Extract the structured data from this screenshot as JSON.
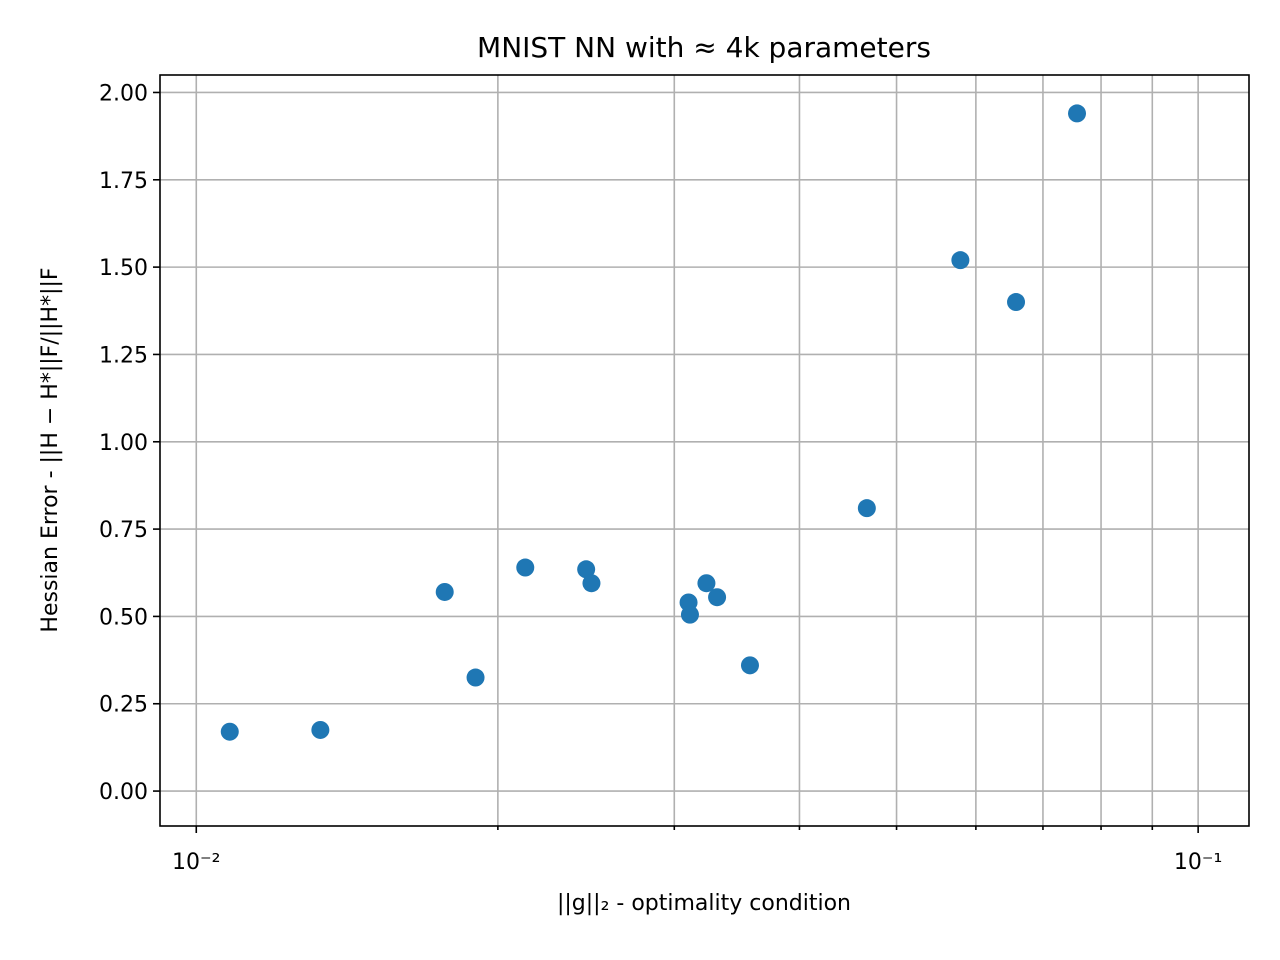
{
  "chart_data": {
    "type": "scatter",
    "title": "MNIST NN with ≈ 4k parameters",
    "xlabel": "||g||₂ - optimality condition",
    "ylabel": "Hessian Error - ||H − H*||F/||H*||F",
    "xscale": "log",
    "xlim": [
      0.0092,
      0.1124
    ],
    "ylim": [
      -0.1,
      2.05
    ],
    "grid": true,
    "x_ticks": [
      {
        "value": 0.01,
        "label": "10⁻²"
      },
      {
        "value": 0.1,
        "label": "10⁻¹"
      }
    ],
    "y_ticks": [
      {
        "value": 0.0,
        "label": "0.00"
      },
      {
        "value": 0.25,
        "label": "0.25"
      },
      {
        "value": 0.5,
        "label": "0.50"
      },
      {
        "value": 0.75,
        "label": "0.75"
      },
      {
        "value": 1.0,
        "label": "1.00"
      },
      {
        "value": 1.25,
        "label": "1.25"
      },
      {
        "value": 1.5,
        "label": "1.50"
      },
      {
        "value": 1.75,
        "label": "1.75"
      },
      {
        "value": 2.0,
        "label": "2.00"
      }
    ],
    "color": "#1f77b4",
    "points": [
      {
        "x": 0.0108,
        "y": 0.17
      },
      {
        "x": 0.0133,
        "y": 0.175
      },
      {
        "x": 0.0177,
        "y": 0.57
      },
      {
        "x": 0.019,
        "y": 0.325
      },
      {
        "x": 0.0213,
        "y": 0.64
      },
      {
        "x": 0.0245,
        "y": 0.635
      },
      {
        "x": 0.0248,
        "y": 0.595
      },
      {
        "x": 0.031,
        "y": 0.54
      },
      {
        "x": 0.0311,
        "y": 0.505
      },
      {
        "x": 0.0323,
        "y": 0.595
      },
      {
        "x": 0.0331,
        "y": 0.555
      },
      {
        "x": 0.0357,
        "y": 0.36
      },
      {
        "x": 0.0467,
        "y": 0.81
      },
      {
        "x": 0.0579,
        "y": 1.52
      },
      {
        "x": 0.0658,
        "y": 1.4
      },
      {
        "x": 0.0757,
        "y": 1.94
      }
    ]
  }
}
